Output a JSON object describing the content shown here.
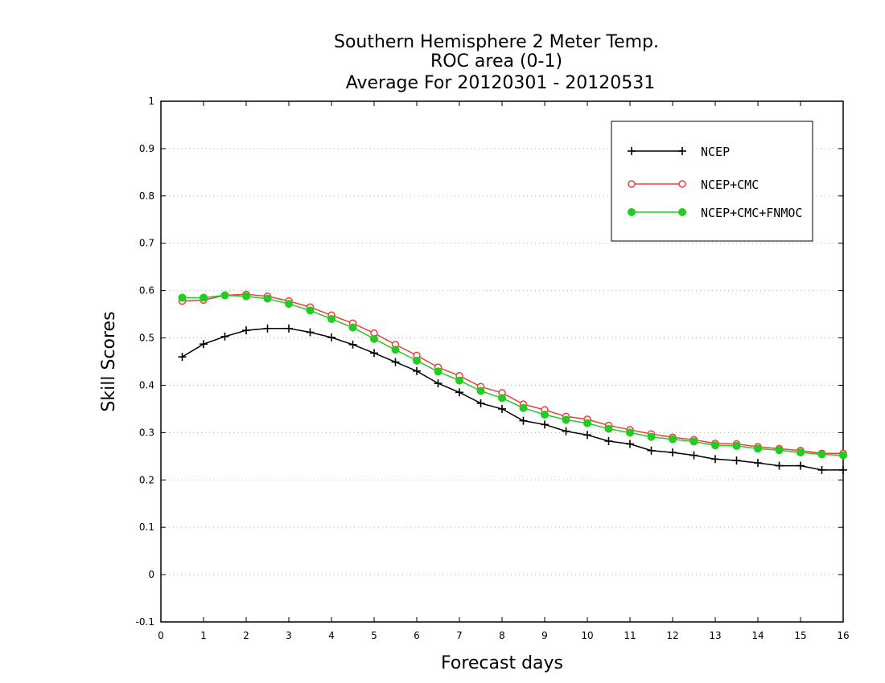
{
  "chart_data": {
    "type": "line",
    "title": [
      "Southern Hemisphere 2 Meter Temp.",
      "ROC area (0-1)",
      "Average For 20120301 - 20120531"
    ],
    "xlabel": "Forecast days",
    "ylabel": "Skill Scores",
    "xlim": [
      0,
      16
    ],
    "ylim": [
      -0.1,
      1
    ],
    "xticks": [
      0,
      1,
      2,
      3,
      4,
      5,
      6,
      7,
      8,
      9,
      10,
      11,
      12,
      13,
      14,
      15,
      16
    ],
    "xtick_labels": [
      "0",
      "1",
      "2",
      "3",
      "4",
      "5",
      "6",
      "7",
      "8",
      "9",
      "10",
      "11",
      "12",
      "13",
      "14",
      "15",
      "16"
    ],
    "yticks": [
      -0.1,
      0,
      0.1,
      0.2,
      0.3,
      0.4,
      0.5,
      0.6,
      0.7,
      0.8,
      0.9,
      1
    ],
    "ytick_labels": [
      "-0.1",
      "0",
      "0.1",
      "0.2",
      "0.3",
      "0.4",
      "0.5",
      "0.6",
      "0.7",
      "0.8",
      "0.9",
      "1"
    ],
    "grid": true,
    "legend_position": "top-right",
    "x": [
      0.5,
      1,
      1.5,
      2,
      2.5,
      3,
      3.5,
      4,
      4.5,
      5,
      5.5,
      6,
      6.5,
      7,
      7.5,
      8,
      8.5,
      9,
      9.5,
      10,
      10.5,
      11,
      11.5,
      12,
      12.5,
      13,
      13.5,
      14,
      14.5,
      15,
      15.5,
      16
    ],
    "series": [
      {
        "name": "NCEP",
        "color": "#000000",
        "marker": "plus",
        "values": [
          0.46,
          0.487,
          0.503,
          0.516,
          0.52,
          0.52,
          0.512,
          0.501,
          0.486,
          0.468,
          0.449,
          0.43,
          0.404,
          0.385,
          0.362,
          0.35,
          0.325,
          0.317,
          0.303,
          0.295,
          0.282,
          0.276,
          0.262,
          0.258,
          0.252,
          0.244,
          0.241,
          0.236,
          0.23,
          0.23,
          0.221,
          0.221
        ]
      },
      {
        "name": "NCEP+CMC",
        "color": "#e8413c",
        "marker": "open-circle",
        "values": [
          0.578,
          0.58,
          0.59,
          0.592,
          0.588,
          0.578,
          0.565,
          0.548,
          0.531,
          0.51,
          0.486,
          0.463,
          0.438,
          0.42,
          0.397,
          0.384,
          0.36,
          0.348,
          0.334,
          0.328,
          0.315,
          0.306,
          0.297,
          0.29,
          0.285,
          0.277,
          0.276,
          0.27,
          0.266,
          0.262,
          0.256,
          0.256
        ]
      },
      {
        "name": "NCEP+CMC+FNMOC",
        "color": "#22cc22",
        "marker": "filled-circle",
        "values": [
          0.585,
          0.585,
          0.59,
          0.588,
          0.583,
          0.572,
          0.558,
          0.54,
          0.522,
          0.498,
          0.475,
          0.452,
          0.429,
          0.41,
          0.388,
          0.373,
          0.352,
          0.338,
          0.327,
          0.32,
          0.308,
          0.3,
          0.291,
          0.286,
          0.281,
          0.273,
          0.272,
          0.266,
          0.263,
          0.258,
          0.254,
          0.252
        ]
      }
    ]
  }
}
